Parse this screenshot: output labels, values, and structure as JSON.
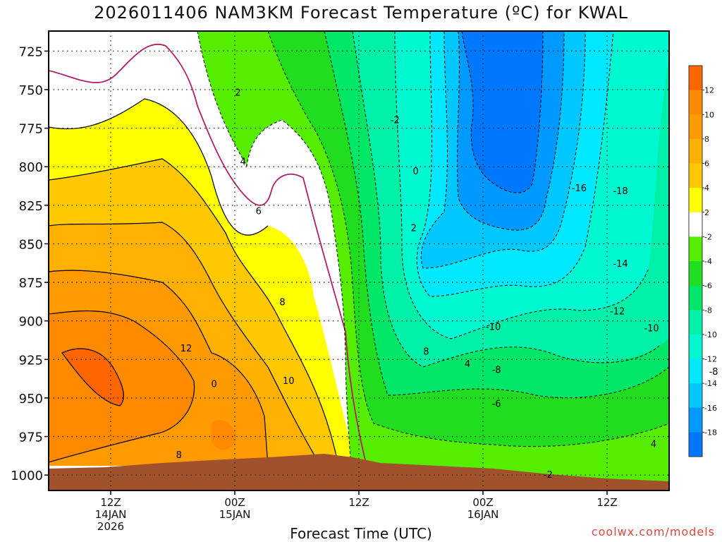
{
  "chart_data": {
    "type": "heatmap",
    "title": "2026011406 NAM3KM Forecast Temperature (ºC) for KWAL",
    "xlabel": "Forecast Time (UTC)",
    "ylabel": "",
    "y_axis": {
      "unit": "hPa",
      "ticks": [
        725,
        750,
        775,
        800,
        825,
        850,
        875,
        900,
        925,
        950,
        975,
        1000
      ],
      "range": [
        712,
        1010
      ],
      "inverted": true
    },
    "x_axis": {
      "ticks": [
        {
          "time": "12Z",
          "date": "14JAN",
          "year": "2026"
        },
        {
          "time": "00Z",
          "date": "15JAN",
          "year": ""
        },
        {
          "time": "12Z",
          "date": "",
          "year": ""
        },
        {
          "time": "00Z",
          "date": "16JAN",
          "year": ""
        },
        {
          "time": "12Z",
          "date": "",
          "year": ""
        }
      ],
      "start": "2026-01-14 06Z",
      "end": "2026-01-16 18Z"
    },
    "colorbar": {
      "levels": [
        12,
        10,
        8,
        6,
        4,
        2,
        -2,
        -4,
        -6,
        -8,
        -10,
        -12,
        -14,
        -16,
        -18
      ],
      "colors": [
        "#ff6600",
        "#ff8a00",
        "#ff9a00",
        "#ffb000",
        "#ffc800",
        "#ffff00",
        "#ffffff",
        "#55ee00",
        "#20dd20",
        "#00e666",
        "#00f0a8",
        "#00f8d0",
        "#00e8ff",
        "#00c8ff",
        "#0099ff",
        "#0077ff"
      ]
    },
    "contour_labels": [
      {
        "text": "2",
        "time": 18.3,
        "pres": 752
      },
      {
        "text": "4",
        "time": 18.8,
        "pres": 797
      },
      {
        "text": "6",
        "time": 20.3,
        "pres": 829
      },
      {
        "text": "8",
        "time": 22.6,
        "pres": 888
      },
      {
        "text": "10",
        "time": 23.2,
        "pres": 939
      },
      {
        "text": "12",
        "time": 13.3,
        "pres": 918
      },
      {
        "text": "0",
        "time": 16.0,
        "pres": 941
      },
      {
        "text": "8",
        "time": 12.6,
        "pres": 987
      },
      {
        "text": "8",
        "time": 36.5,
        "pres": 920
      },
      {
        "text": "4",
        "time": 40.5,
        "pres": 928
      },
      {
        "text": "-2",
        "time": 33.5,
        "pres": 770
      },
      {
        "text": "0",
        "time": 35.5,
        "pres": 803
      },
      {
        "text": "2",
        "time": 35.3,
        "pres": 840
      },
      {
        "text": "-16",
        "time": 51.3,
        "pres": 814
      },
      {
        "text": "-18",
        "time": 55.3,
        "pres": 816
      },
      {
        "text": "-14",
        "time": 55.3,
        "pres": 863
      },
      {
        "text": "-12",
        "time": 55.0,
        "pres": 894
      },
      {
        "text": "-10",
        "time": 43.0,
        "pres": 904
      },
      {
        "text": "-10",
        "time": 58.3,
        "pres": 905
      },
      {
        "text": "-8",
        "time": 43.3,
        "pres": 932
      },
      {
        "text": "-8",
        "time": 64.3,
        "pres": 933
      },
      {
        "text": "-6",
        "time": 43.3,
        "pres": 954
      },
      {
        "text": "4",
        "time": 58.5,
        "pres": 980
      },
      {
        "text": "-2",
        "time": 48.3,
        "pres": 1000
      }
    ]
  },
  "credit": "coolwx.com/models"
}
